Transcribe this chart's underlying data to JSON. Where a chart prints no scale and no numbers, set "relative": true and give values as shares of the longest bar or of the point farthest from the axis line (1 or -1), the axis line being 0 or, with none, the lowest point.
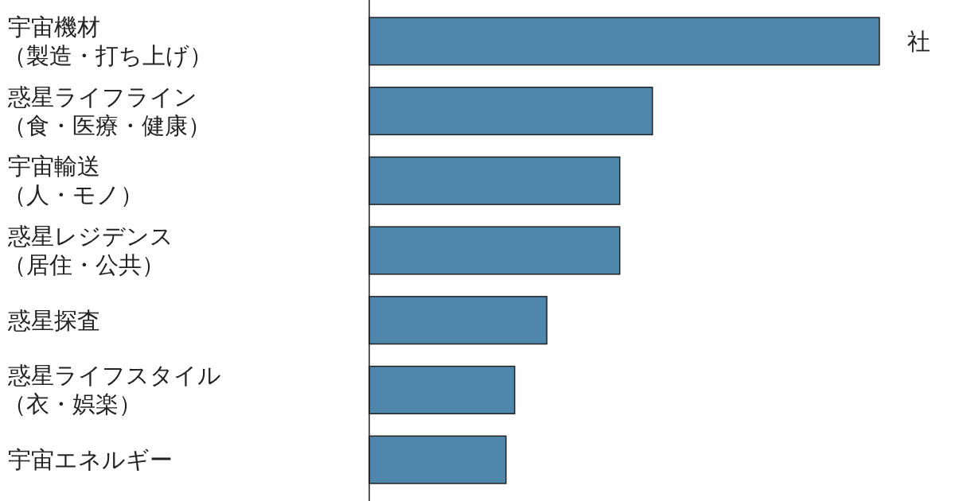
{
  "chart_data": {
    "type": "bar",
    "orientation": "horizontal",
    "relative": true,
    "categories": [
      "宇宙機材（製造・打ち上げ）",
      "惑星ライフライン（食・医療・健康）",
      "宇宙輸送（人・モノ）",
      "惑星レジデンス（居住・公共）",
      "惑星探査",
      "惑星ライフスタイル（衣・娯楽）",
      "宇宙エネルギー"
    ],
    "values": [
      1,
      0.555,
      0.491,
      0.491,
      0.348,
      0.285,
      0.268
    ],
    "color": "#4f86ab",
    "annotations": [
      "社"
    ]
  }
}
